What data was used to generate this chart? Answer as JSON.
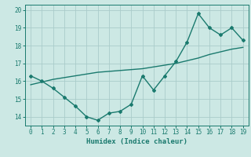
{
  "xlabel": "Humidex (Indice chaleur)",
  "ylabel": "",
  "x_values": [
    0,
    1,
    2,
    3,
    4,
    5,
    6,
    7,
    8,
    9,
    10,
    11,
    12,
    13,
    14,
    15,
    16,
    17,
    18,
    19
  ],
  "y_data": [
    16.3,
    16.0,
    15.6,
    15.1,
    14.6,
    14.0,
    13.8,
    14.2,
    14.3,
    14.7,
    16.3,
    15.5,
    16.3,
    17.1,
    18.2,
    19.8,
    19.0,
    18.6,
    19.0,
    18.3
  ],
  "trend_line": [
    15.8,
    15.95,
    16.1,
    16.2,
    16.3,
    16.4,
    16.5,
    16.55,
    16.6,
    16.65,
    16.7,
    16.8,
    16.9,
    17.0,
    17.15,
    17.3,
    17.5,
    17.65,
    17.8,
    17.9
  ],
  "line_color": "#1a7a6e",
  "bg_color": "#cce8e4",
  "grid_color": "#aaccca",
  "xlim": [
    -0.5,
    19.5
  ],
  "ylim": [
    13.5,
    20.3
  ],
  "yticks": [
    14,
    15,
    16,
    17,
    18,
    19,
    20
  ],
  "xticks": [
    0,
    1,
    2,
    3,
    4,
    5,
    6,
    7,
    8,
    9,
    10,
    11,
    12,
    13,
    14,
    15,
    16,
    17,
    18,
    19
  ]
}
